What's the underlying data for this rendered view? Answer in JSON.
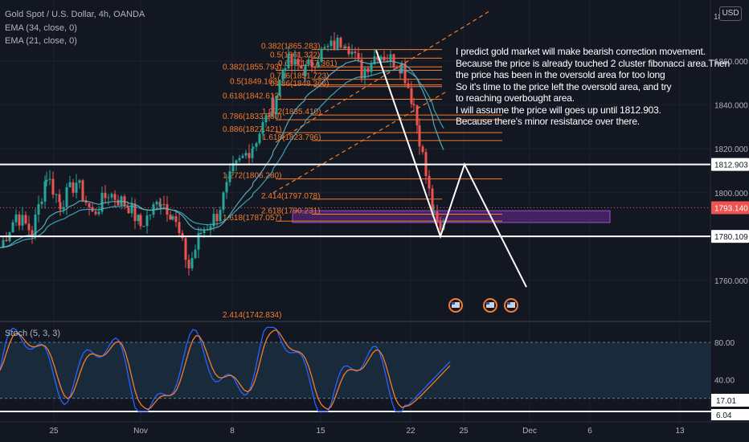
{
  "header": {
    "title": "Gold Spot / U.S. Dollar, 4h, OANDA",
    "ema1": "EMA (34, close, 0)",
    "ema2": "EMA (21, close, 0)",
    "currency": "USD"
  },
  "annotation": {
    "lines": [
      "I predict gold market will make bearish correction movement.",
      "Because the price is already touched 2 cluster fibonacci area.Then",
      "the price has been in the oversold area for too long",
      "So it's time to the price left the oversold area, and try",
      "to reaching overbought area.",
      "I will assume the price will goes up until 1812.903.",
      "Because there's minor resistance over there."
    ]
  },
  "chart_data": {
    "type": "candlestick",
    "title": "Gold Spot / U.S. Dollar, 4h, OANDA",
    "price_axis": {
      "ticks": [
        "1860.000",
        "1840.000",
        "1820.000",
        "1800.000",
        "1760.000"
      ],
      "tick_values": [
        1860,
        1840,
        1820,
        1800,
        1760
      ],
      "top_label": "18"
    },
    "time_axis": {
      "labels": [
        "25",
        "Nov",
        "8",
        "15",
        "22",
        "25",
        "Dec",
        "6",
        "13"
      ]
    },
    "price_labels": [
      {
        "text": "1812.903",
        "value": 1812.903,
        "style": "white"
      },
      {
        "text": "1793.140",
        "value": 1793.14,
        "style": "red"
      },
      {
        "text": "1780.109",
        "value": 1780.109,
        "style": "white"
      }
    ],
    "horizontal_lines": [
      1812.903,
      1780.109
    ],
    "fib_labels": [
      {
        "text": "0.382(1865.283)",
        "value": 1865.283
      },
      {
        "text": "0.5(1861.322)",
        "value": 1861.322
      },
      {
        "text": "0.618(1857.361)",
        "value": 1857.361
      },
      {
        "text": "0.382(1855.793)",
        "value": 1855.793
      },
      {
        "text": "0.786(1851.723)",
        "value": 1851.723
      },
      {
        "text": "0.5(1849.163)",
        "value": 1849.163
      },
      {
        "text": "0.886(1848.366)",
        "value": 1848.366
      },
      {
        "text": "0.618(1842.613)",
        "value": 1842.613
      },
      {
        "text": "1.272(1835.410)",
        "value": 1835.41
      },
      {
        "text": "0.786(1833.280)",
        "value": 1833.28
      },
      {
        "text": "0.886(1827.421)",
        "value": 1827.421
      },
      {
        "text": "1.618(1823.796)",
        "value": 1823.796
      },
      {
        "text": "1.272(1806.280)",
        "value": 1806.28
      },
      {
        "text": "2.414(1797.078)",
        "value": 1797.078
      },
      {
        "text": "2.618(1790.231)",
        "value": 1790.231
      },
      {
        "text": "1.618(1787.057)",
        "value": 1787.057
      },
      {
        "text": "2.414(1742.834)",
        "value": 1742.834
      }
    ],
    "stochastic": {
      "title": "Stoch (5, 3, 3)",
      "ticks": [
        "80.00",
        "40.00"
      ],
      "tick_values": [
        80,
        40
      ],
      "current_k": "17.01",
      "current_d": "6.04",
      "overbought": 80,
      "oversold": 20
    },
    "projection_path": [
      1780.109,
      1812.903,
      1755
    ],
    "colors": {
      "up": "#26a69a",
      "down": "#ef5350",
      "fib": "#f47c2c",
      "ema34": "#3bb3c3",
      "ema21": "#5fb6c8",
      "stoch_k": "#2962ff",
      "stoch_d": "#f47c2c",
      "zone": "#6a2c91"
    }
  }
}
